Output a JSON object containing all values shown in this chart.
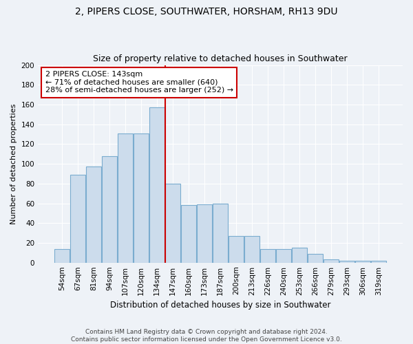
{
  "title1": "2, PIPERS CLOSE, SOUTHWATER, HORSHAM, RH13 9DU",
  "title2": "Size of property relative to detached houses in Southwater",
  "xlabel": "Distribution of detached houses by size in Southwater",
  "ylabel": "Number of detached properties",
  "categories": [
    "54sqm",
    "67sqm",
    "81sqm",
    "94sqm",
    "107sqm",
    "120sqm",
    "134sqm",
    "147sqm",
    "160sqm",
    "173sqm",
    "187sqm",
    "200sqm",
    "213sqm",
    "226sqm",
    "240sqm",
    "253sqm",
    "266sqm",
    "279sqm",
    "293sqm",
    "306sqm",
    "319sqm"
  ],
  "values": [
    14,
    89,
    97,
    108,
    131,
    131,
    157,
    80,
    58,
    59,
    60,
    27,
    27,
    14,
    14,
    15,
    9,
    3,
    2,
    2,
    2
  ],
  "bar_color": "#ccdcec",
  "bar_edge_color": "#7aaccf",
  "vline_color": "#cc0000",
  "annotation_text": "2 PIPERS CLOSE: 143sqm\n← 71% of detached houses are smaller (640)\n28% of semi-detached houses are larger (252) →",
  "annotation_box_facecolor": "#ffffff",
  "annotation_box_edgecolor": "#cc0000",
  "ylim": [
    0,
    200
  ],
  "yticks": [
    0,
    20,
    40,
    60,
    80,
    100,
    120,
    140,
    160,
    180,
    200
  ],
  "footer": "Contains HM Land Registry data © Crown copyright and database right 2024.\nContains public sector information licensed under the Open Government Licence v3.0.",
  "bg_color": "#eef2f7",
  "grid_color": "#ffffff",
  "title1_fontsize": 10,
  "title2_fontsize": 9,
  "xlabel_fontsize": 8.5,
  "ylabel_fontsize": 8,
  "tick_fontsize": 7.5,
  "annotation_fontsize": 8,
  "footer_fontsize": 6.5
}
